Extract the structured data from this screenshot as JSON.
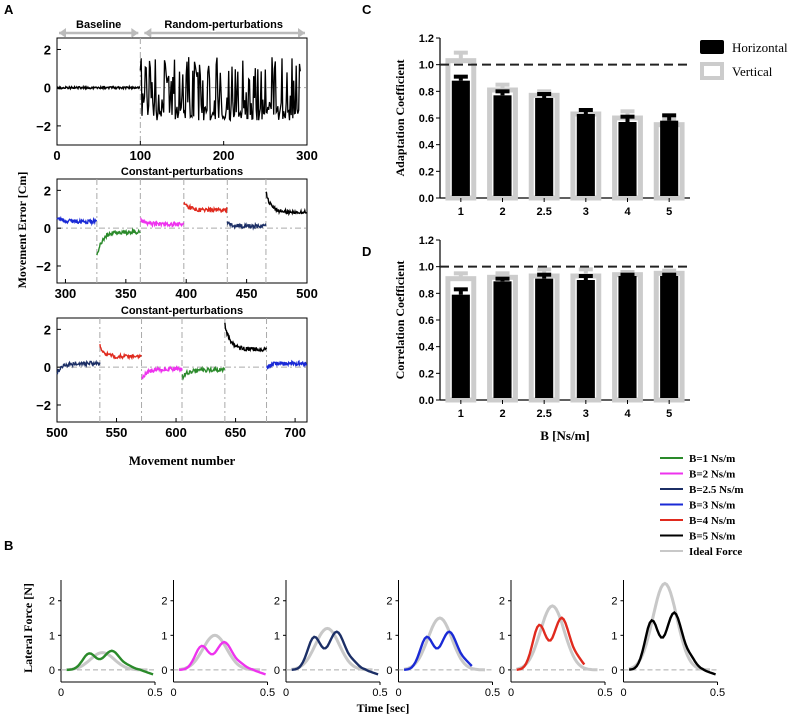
{
  "panel_letters": {
    "a": "A",
    "b": "B",
    "c": "C",
    "d": "D"
  },
  "colors": {
    "B1": "#2a8a2a",
    "B2": "#ee33ee",
    "B25": "#1c2f66",
    "B3": "#1a2ad6",
    "B4": "#e02a1e",
    "B5": "#000000",
    "ideal": "#c8c8c8",
    "dashdot": "#aaaaaa"
  },
  "chart_data": [
    {
      "id": "A1",
      "type": "line",
      "title": "",
      "xlabel": "",
      "ylabel": "",
      "xlim": [
        0,
        300
      ],
      "ylim": [
        -3,
        2.6
      ],
      "xticks": [
        0,
        100,
        200,
        300
      ],
      "yticks": [
        2,
        0,
        -2
      ],
      "annotations": [
        "Baseline",
        "Random-perturbations"
      ],
      "phase_boundaries": [
        100
      ],
      "series": [
        {
          "name": "Baseline",
          "color": "#000000",
          "x_range": [
            0,
            100
          ],
          "level": 0,
          "noise": 0.12
        },
        {
          "name": "Random-perturbations",
          "color": "#000000",
          "x_range": [
            100,
            292
          ],
          "pattern": "random",
          "min": -1.7,
          "max": 1.8
        }
      ]
    },
    {
      "id": "A2",
      "type": "line",
      "title": "Constant-perturbations",
      "xlabel": "",
      "ylabel": "",
      "xlim": [
        293,
        500
      ],
      "ylim": [
        -2.9,
        2.6
      ],
      "xticks": [
        300,
        350,
        400,
        450,
        500
      ],
      "yticks": [
        2,
        0,
        -2
      ],
      "phase_boundaries": [
        326,
        362,
        398,
        434,
        466
      ],
      "series": [
        {
          "name": "B=3 Ns/m",
          "color": "#1a2ad6",
          "x_range": [
            293,
            326
          ],
          "start": 0.55,
          "end": 0.35
        },
        {
          "name": "B=1 Ns/m",
          "color": "#2a8a2a",
          "x_range": [
            326,
            362
          ],
          "start": -1.5,
          "end": -0.2
        },
        {
          "name": "B=2 Ns/m",
          "color": "#ee33ee",
          "x_range": [
            362,
            398
          ],
          "start": 0.45,
          "end": 0.2
        },
        {
          "name": "B=4 Ns/m",
          "color": "#e02a1e",
          "x_range": [
            398,
            434
          ],
          "start": 1.35,
          "end": 0.95
        },
        {
          "name": "B=2.5 Ns/m",
          "color": "#1c2f66",
          "x_range": [
            434,
            466
          ],
          "start": 0.3,
          "end": 0.1
        },
        {
          "name": "B=5 Ns/m",
          "color": "#000000",
          "x_range": [
            466,
            500
          ],
          "start": 1.9,
          "end": 0.85
        }
      ]
    },
    {
      "id": "A3",
      "type": "line",
      "title": "Constant-perturbations",
      "xlabel": "Movement number",
      "ylabel": "",
      "xlim": [
        500,
        710
      ],
      "ylim": [
        -2.9,
        2.6
      ],
      "xticks": [
        500,
        550,
        600,
        650,
        700
      ],
      "yticks": [
        2,
        0,
        -2
      ],
      "phase_boundaries": [
        536,
        571,
        605,
        641,
        676
      ],
      "series": [
        {
          "name": "B=2.5 Ns/m",
          "color": "#1c2f66",
          "x_range": [
            500,
            536
          ],
          "start": -0.3,
          "end": 0.2
        },
        {
          "name": "B=4 Ns/m",
          "color": "#e02a1e",
          "x_range": [
            536,
            571
          ],
          "start": 1.15,
          "end": 0.55
        },
        {
          "name": "B=2 Ns/m",
          "color": "#ee33ee",
          "x_range": [
            571,
            605
          ],
          "start": -0.65,
          "end": -0.1
        },
        {
          "name": "B=1 Ns/m",
          "color": "#2a8a2a",
          "x_range": [
            605,
            641
          ],
          "start": -0.6,
          "end": -0.15
        },
        {
          "name": "B=5 Ns/m",
          "color": "#000000",
          "x_range": [
            641,
            676
          ],
          "start": 2.3,
          "end": 0.95
        },
        {
          "name": "B=3 Ns/m",
          "color": "#1a2ad6",
          "x_range": [
            676,
            710
          ],
          "start": 0.0,
          "end": 0.2
        }
      ]
    },
    {
      "id": "C",
      "type": "bar",
      "title": "",
      "xlabel": "",
      "ylabel": "Adaptation Coefficient",
      "ylim": [
        0,
        1.2
      ],
      "yticks": [
        0.0,
        0.2,
        0.4,
        0.6,
        0.8,
        1.0,
        1.2
      ],
      "categories": [
        "1",
        "2",
        "2.5",
        "3",
        "4",
        "5"
      ],
      "reference_line": 1.0,
      "legend": [
        "Horizontal",
        "Vertical"
      ],
      "series": [
        {
          "name": "Horizontal",
          "color": "#000000",
          "values": [
            0.88,
            0.77,
            0.75,
            0.63,
            0.57,
            0.58
          ],
          "errors": [
            0.03,
            0.03,
            0.03,
            0.03,
            0.04,
            0.04
          ]
        },
        {
          "name": "Vertical",
          "color": "#cccccc",
          "values": [
            1.03,
            0.81,
            0.77,
            0.63,
            0.6,
            0.55
          ],
          "errors": [
            0.06,
            0.04,
            0.03,
            0.03,
            0.05,
            0.04
          ]
        }
      ]
    },
    {
      "id": "D",
      "type": "bar",
      "title": "",
      "xlabel": "B [Ns/m]",
      "ylabel": "Correlation Coefficient",
      "ylim": [
        0,
        1.2
      ],
      "yticks": [
        0.0,
        0.2,
        0.4,
        0.6,
        0.8,
        1.0,
        1.2
      ],
      "categories": [
        "1",
        "2",
        "2.5",
        "3",
        "4",
        "5"
      ],
      "reference_line": 1.0,
      "series": [
        {
          "name": "Horizontal",
          "color": "#000000",
          "values": [
            0.79,
            0.89,
            0.91,
            0.9,
            0.93,
            0.93
          ],
          "errors": [
            0.04,
            0.02,
            0.03,
            0.03,
            0.01,
            0.01
          ]
        },
        {
          "name": "Vertical",
          "color": "#cccccc",
          "values": [
            0.91,
            0.92,
            0.93,
            0.93,
            0.94,
            0.95
          ],
          "errors": [
            0.04,
            0.03,
            0.05,
            0.05,
            0.02,
            0.02
          ]
        }
      ]
    },
    {
      "id": "B",
      "type": "line",
      "title": "",
      "xlabel": "Time [sec]",
      "ylabel": "Lateral Force [N]",
      "xlim": [
        0,
        0.5
      ],
      "ylim": [
        -0.35,
        2.6
      ],
      "xticks": [
        0,
        0.5
      ],
      "yticks": [
        0,
        1,
        2
      ],
      "legend": [
        "B=1 Ns/m",
        "B=2 Ns/m",
        "B=2.5 Ns/m",
        "B=3 Ns/m",
        "B=4 Ns/m",
        "B=5 Ns/m",
        "Ideal Force"
      ],
      "panels": [
        {
          "name": "B=1 Ns/m",
          "color": "#2a8a2a",
          "ideal_peak": 0.5,
          "actual_peak": 0.55,
          "end_time": 0.5
        },
        {
          "name": "B=2 Ns/m",
          "color": "#ee33ee",
          "ideal_peak": 1.0,
          "actual_peak": 0.8,
          "end_time": 0.5
        },
        {
          "name": "B=2.5 Ns/m",
          "color": "#1c2f66",
          "ideal_peak": 1.2,
          "actual_peak": 1.1,
          "end_time": 0.5
        },
        {
          "name": "B=3 Ns/m",
          "color": "#1a2ad6",
          "ideal_peak": 1.5,
          "actual_peak": 1.1,
          "end_time": 0.4
        },
        {
          "name": "B=4 Ns/m",
          "color": "#e02a1e",
          "ideal_peak": 1.85,
          "actual_peak": 1.5,
          "end_time": 0.4
        },
        {
          "name": "B=5 Ns/m",
          "color": "#000000",
          "ideal_peak": 2.5,
          "actual_peak": 1.65,
          "end_time": 0.5
        }
      ]
    }
  ],
  "labels": {
    "a_ylabel": "Movement Error [Cm]",
    "tick_zero": "0",
    "tick_half": "0.5"
  }
}
